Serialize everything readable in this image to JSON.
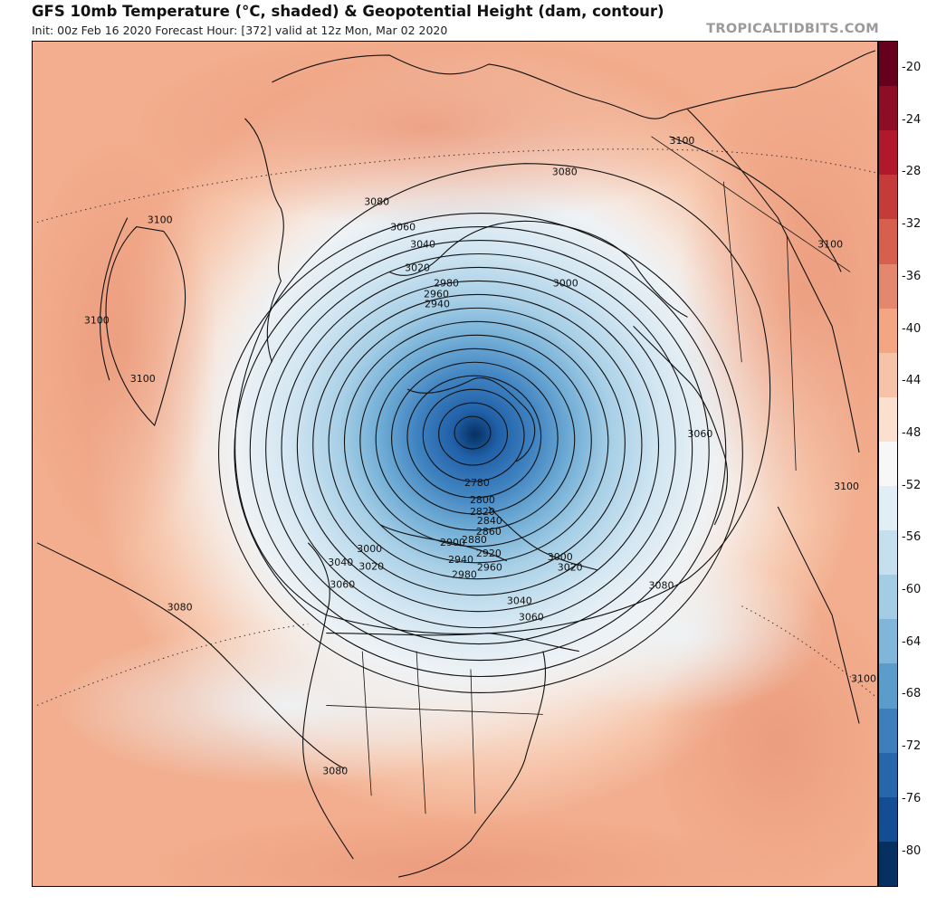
{
  "header": {
    "title": "GFS 10mb Temperature (°C, shaded) & Geopotential Height (dam, contour)",
    "subtitle": "Init: 00z Feb 16 2020   Forecast Hour: [372]   valid at 12z Mon, Mar 02 2020",
    "credit": "TROPICALTIDBITS.COM"
  },
  "colorbar": {
    "ticks": [
      "-20",
      "-24",
      "-28",
      "-32",
      "-36",
      "-40",
      "-44",
      "-48",
      "-52",
      "-56",
      "-60",
      "-64",
      "-68",
      "-72",
      "-76",
      "-80"
    ],
    "colors": [
      "#67001f",
      "#8e0d26",
      "#b2182b",
      "#c43b3a",
      "#d6604d",
      "#e4876f",
      "#f4a582",
      "#f7c3a8",
      "#fbe0d0",
      "#f7f7f7",
      "#e2eef6",
      "#c6dfef",
      "#a3cde4",
      "#7fb6d9",
      "#5a9ccc",
      "#3d7fbd",
      "#2666ab",
      "#134d94",
      "#053061"
    ]
  },
  "map": {
    "contour_labels": [
      "2780",
      "2800",
      "2820",
      "2840",
      "2860",
      "2880",
      "2900",
      "2920",
      "2940",
      "2960",
      "2980",
      "3000",
      "3020",
      "3040",
      "3060",
      "3080",
      "3100"
    ],
    "labels_on_map": [
      {
        "text": "3100",
        "name": "label-3100-greenland"
      },
      {
        "text": "3100",
        "name": "label-3100-north-atlantic"
      },
      {
        "text": "3100",
        "name": "label-3100-atlantic"
      },
      {
        "text": "3100",
        "name": "label-3100-russia"
      },
      {
        "text": "3100",
        "name": "label-3100-siberia"
      },
      {
        "text": "3100",
        "name": "label-3100-asia"
      },
      {
        "text": "3100",
        "name": "label-3100-pacific"
      },
      {
        "text": "3080",
        "name": "label-3080-europe"
      },
      {
        "text": "3080",
        "name": "label-3080-siberia"
      },
      {
        "text": "3080",
        "name": "label-3080-atlantic"
      },
      {
        "text": "3080",
        "name": "label-3080-pacific"
      },
      {
        "text": "3080",
        "name": "label-3080-mexico"
      },
      {
        "text": "3060",
        "name": "label-3060-europe"
      },
      {
        "text": "3060",
        "name": "label-3060-siberia"
      },
      {
        "text": "3060",
        "name": "label-3060-canada"
      },
      {
        "text": "3060",
        "name": "label-3060-hudson"
      },
      {
        "text": "3040",
        "name": "label-3040-europe"
      },
      {
        "text": "3040",
        "name": "label-3040-canada"
      },
      {
        "text": "3040",
        "name": "label-3040-labrador"
      },
      {
        "text": "3020",
        "name": "label-3020-europe"
      },
      {
        "text": "3020",
        "name": "label-3020-canada"
      },
      {
        "text": "3020",
        "name": "label-3020-alaska"
      },
      {
        "text": "3000",
        "name": "label-3000-arctic"
      },
      {
        "text": "3000",
        "name": "label-3000-alaska"
      },
      {
        "text": "3000",
        "name": "label-3000-baffin"
      },
      {
        "text": "2980",
        "name": "label-2980-arctic"
      },
      {
        "text": "2980",
        "name": "label-2980-canada"
      },
      {
        "text": "2960",
        "name": "label-2960-arctic"
      },
      {
        "text": "2960",
        "name": "label-2960-canada"
      },
      {
        "text": "2940",
        "name": "label-2940-arctic"
      },
      {
        "text": "2940",
        "name": "label-2940-canada"
      },
      {
        "text": "2920",
        "name": "label-2920-canada"
      },
      {
        "text": "2900",
        "name": "label-2900-canada"
      },
      {
        "text": "2880",
        "name": "label-2880-canada"
      },
      {
        "text": "2860",
        "name": "label-2860-canada"
      },
      {
        "text": "2840",
        "name": "label-2840-canada"
      },
      {
        "text": "2820",
        "name": "label-2820-canada"
      },
      {
        "text": "2800",
        "name": "label-2800-canada"
      },
      {
        "text": "2780",
        "name": "label-2780-canada"
      }
    ]
  }
}
